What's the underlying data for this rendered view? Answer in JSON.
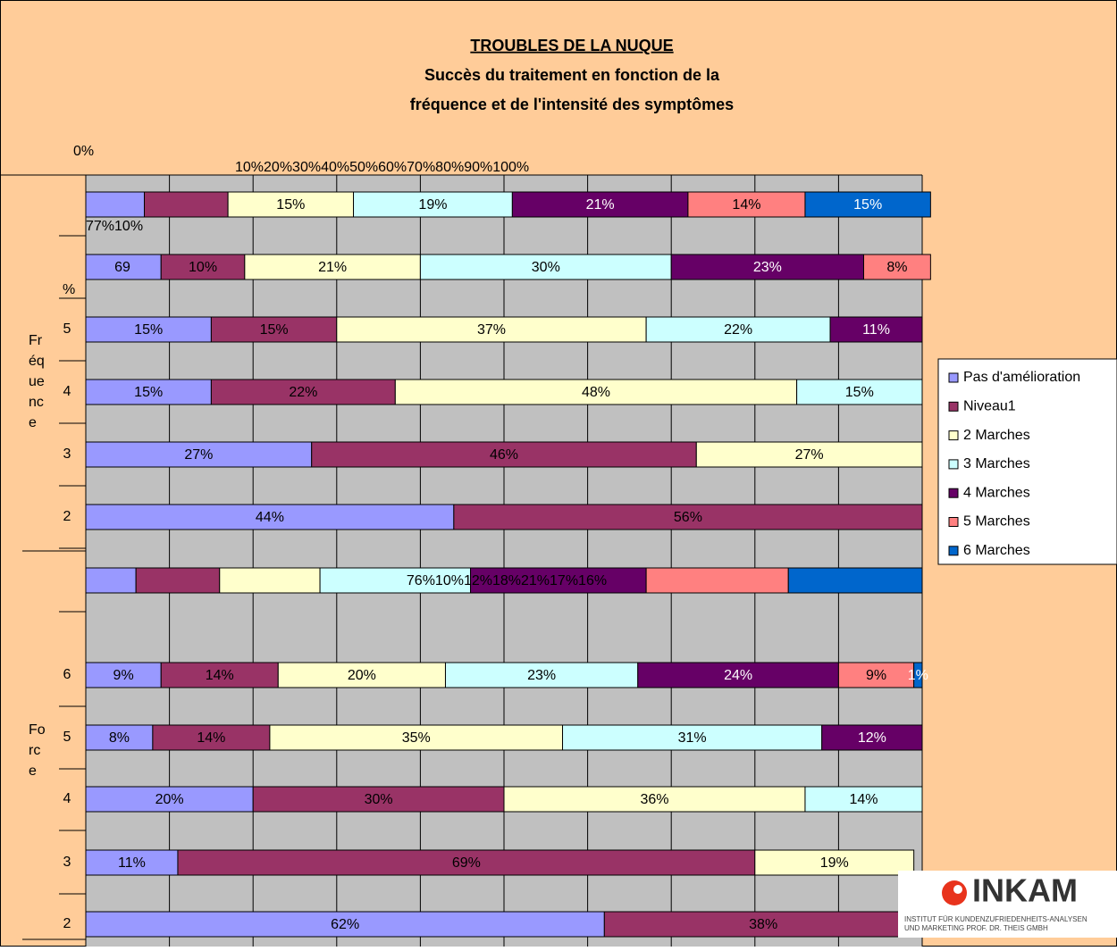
{
  "chart_data": {
    "type": "stacked-barh",
    "title": "TROUBLES DE LA NUQUE",
    "subtitle": [
      "Succès du traitement en fonction de la",
      "fréquence et de l'intensité des symptômes"
    ],
    "xlim": [
      0,
      100
    ],
    "xticks": [
      {
        "value": 0,
        "label": "0%"
      },
      10,
      20,
      30,
      40,
      50,
      60,
      70,
      80,
      90,
      100
    ],
    "xtick_labels_run": "10%20%30%40%50%60%70%80%90%100%",
    "grid": true,
    "legend": "right",
    "categories": [
      null,
      null,
      "5",
      "4",
      "3",
      "2",
      null,
      "6",
      "5",
      "4",
      "3",
      "2"
    ],
    "group_labels": [
      [
        "Fr",
        "éq",
        "ue",
        "nc",
        "e"
      ],
      [
        "Fo",
        "rc",
        "e"
      ]
    ],
    "annotations": [
      "77%10%",
      "69",
      "%",
      "76%10%12%18%21%17%16%"
    ],
    "series": [
      {
        "name": "Pas d'amélioration",
        "color": "#9999ff",
        "values": [
          7,
          9,
          15,
          15,
          27,
          44,
          6,
          9,
          8,
          20,
          11,
          62
        ],
        "value_labels": [
          null,
          null,
          "15%",
          "15%",
          "27%",
          "44%",
          null,
          "9%",
          "8%",
          "20%",
          "11%",
          "62%"
        ]
      },
      {
        "name": "Niveau1",
        "color": "#993366",
        "values": [
          10,
          10,
          15,
          22,
          46,
          56,
          10,
          14,
          14,
          30,
          69,
          38
        ],
        "value_labels": [
          null,
          "10%",
          "15%",
          "22%",
          "46%",
          "56%",
          null,
          "14%",
          "14%",
          "30%",
          "69%",
          "38%"
        ]
      },
      {
        "name": "2 Marches",
        "color": "#ffffcc",
        "values": [
          15,
          21,
          37,
          48,
          27,
          null,
          12,
          20,
          35,
          36,
          19,
          null
        ],
        "value_labels": [
          "15%",
          "21%",
          "37%",
          "48%",
          "27%",
          null,
          null,
          "20%",
          "35%",
          "36%",
          "19%",
          null
        ]
      },
      {
        "name": "3 Marches",
        "color": "#ccffff",
        "values": [
          19,
          30,
          22,
          15,
          null,
          null,
          18,
          23,
          31,
          14,
          null,
          null
        ],
        "value_labels": [
          "19%",
          "30%",
          "22%",
          "15%",
          null,
          null,
          null,
          "23%",
          "31%",
          "14%",
          null,
          null
        ]
      },
      {
        "name": "4 Marches",
        "color": "#660066",
        "values": [
          21,
          23,
          11,
          null,
          null,
          null,
          21,
          24,
          12,
          null,
          null,
          null
        ],
        "value_labels": [
          "21%",
          "23%",
          "11%",
          null,
          null,
          null,
          null,
          "24%",
          "12%",
          null,
          null,
          null
        ]
      },
      {
        "name": "5 Marches",
        "color": "#ff8080",
        "values": [
          14,
          8,
          null,
          null,
          null,
          null,
          17,
          9,
          null,
          null,
          null,
          null
        ],
        "value_labels": [
          "14%",
          "8%",
          null,
          null,
          null,
          null,
          null,
          "9%",
          null,
          null,
          null,
          null
        ]
      },
      {
        "name": "6 Marches",
        "color": "#0066cc",
        "values": [
          15,
          null,
          null,
          null,
          null,
          null,
          16,
          1,
          null,
          null,
          null,
          null
        ],
        "value_labels": [
          "15%",
          null,
          null,
          null,
          null,
          null,
          null,
          "1%",
          null,
          null,
          null,
          null
        ]
      }
    ],
    "logo": {
      "name": "INKAM",
      "lines": [
        "INSTITUT FÜR KUNDENZUFRIEDENHEITS-ANALYSEN",
        "UND MARKETING PROF. DR. THEIS GMBH"
      ]
    }
  }
}
